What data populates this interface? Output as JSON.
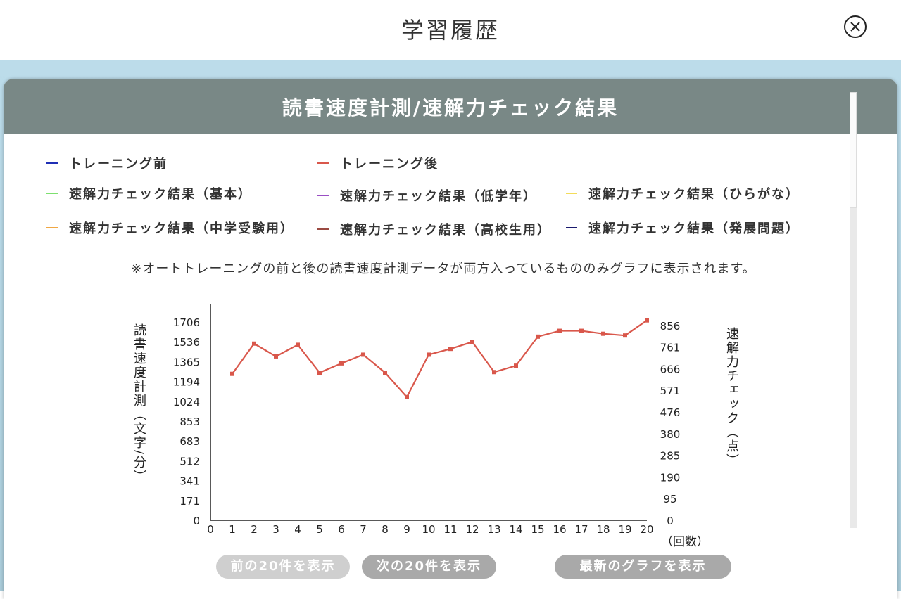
{
  "header": {
    "title": "学習履歴"
  },
  "panel": {
    "title": "読書速度計測/速解力チェック結果"
  },
  "legend": [
    {
      "label": "トレーニング前",
      "color": "#1f2fb5"
    },
    {
      "label": "トレーニング後",
      "color": "#d9574b"
    },
    {
      "label": "速解力チェック結果（基本）",
      "color": "#7de06f"
    },
    {
      "label": "速解力チェック結果（低学年）",
      "color": "#9a4fc4"
    },
    {
      "label": "速解力チェック結果（ひらがな）",
      "color": "#f3dc5a"
    },
    {
      "label": "速解力チェック結果（中学受験用）",
      "color": "#f0a744"
    },
    {
      "label": "速解力チェック結果（高校生用）",
      "color": "#9b4a42"
    },
    {
      "label": "速解力チェック結果（発展問題）",
      "color": "#1a1a6e"
    }
  ],
  "note": "※オートトレーニングの前と後の読書速度計測データが両方入っているもののみグラフに表示されます。",
  "buttons": {
    "prev": "前の20件を表示",
    "next": "次の20件を表示",
    "latest": "最新のグラフを表示"
  },
  "chart_data": {
    "type": "line",
    "y_left_label": "読書速度計測（文字/分）",
    "y_right_label": "速解力チェック（点）",
    "x_unit_label": "（回数）",
    "x_ticks": [
      0,
      1,
      2,
      3,
      4,
      5,
      6,
      7,
      8,
      9,
      10,
      11,
      12,
      13,
      14,
      15,
      16,
      17,
      18,
      19,
      20
    ],
    "y_left_ticks": [
      0,
      171,
      341,
      512,
      683,
      853,
      1024,
      1194,
      1365,
      1536,
      1706
    ],
    "y_right_ticks": [
      0,
      95,
      190,
      285,
      380,
      476,
      571,
      666,
      761,
      856
    ],
    "ylim_left": [
      0,
      1706
    ],
    "grid": false,
    "series": [
      {
        "color": "#d9574b",
        "x": [
          1,
          2,
          3,
          4,
          5,
          6,
          7,
          8,
          9,
          10,
          11,
          12,
          13,
          14,
          15,
          16,
          17,
          18,
          19,
          20
        ],
        "values": [
          1260,
          1520,
          1410,
          1510,
          1270,
          1350,
          1425,
          1270,
          1060,
          1425,
          1475,
          1535,
          1275,
          1330,
          1580,
          1630,
          1630,
          1605,
          1590,
          1720
        ]
      }
    ]
  }
}
